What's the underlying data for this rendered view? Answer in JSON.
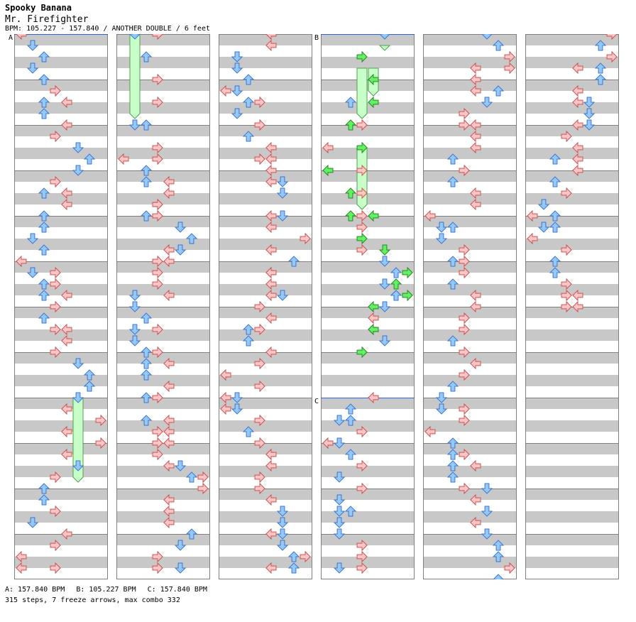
{
  "header": {
    "artist": "Spooky Banana",
    "title": "Mr. Firefighter",
    "info": "BPM: 105.227 - 157.840 / ANOTHER DOUBLE / 6 feet"
  },
  "sections": [
    {
      "label": "A",
      "bpm_text": "A: 157.840 BPM"
    },
    {
      "label": "B",
      "bpm_text": "B: 105.227 BPM"
    },
    {
      "label": "C",
      "bpm_text": "C: 157.840 BPM"
    }
  ],
  "stats": "315 steps, 7 freeze arrows, max combo 332",
  "colors": {
    "row_gray": "#c8c8c8",
    "measure_line": "#808080",
    "border": "#808080",
    "red_fill": "#ffc8c8",
    "red_stroke": "#d05050",
    "blue_fill": "#96c8ff",
    "blue_stroke": "#3c78c8",
    "green_fill": "#64f064",
    "green_stroke": "#208a20",
    "freeze_fill": "#c8ffc8",
    "freeze_stroke": "#50a050",
    "section_line": "#3264c8"
  },
  "chart_data": {
    "type": "table",
    "lanes": 8,
    "measures_per_column": 12,
    "beat_unit": "16th",
    "columns": [
      {
        "notes": [
          [
            0,
            0
          ],
          [
            1,
            1
          ],
          [
            2,
            2
          ],
          [
            3,
            1
          ],
          [
            4,
            2
          ],
          [
            5,
            3
          ],
          [
            6,
            2
          ],
          [
            6,
            4
          ],
          [
            7,
            2
          ],
          [
            8,
            4
          ],
          [
            9,
            3
          ],
          [
            10,
            5
          ],
          [
            11,
            6
          ],
          [
            12,
            5
          ],
          [
            13,
            3
          ],
          [
            14,
            4
          ],
          [
            14,
            2
          ],
          [
            15,
            4
          ],
          [
            16,
            2
          ],
          [
            17,
            2
          ],
          [
            18,
            1
          ],
          [
            19,
            2
          ],
          [
            20,
            0
          ],
          [
            21,
            1
          ],
          [
            21,
            3
          ],
          [
            22,
            2
          ],
          [
            22,
            3
          ],
          [
            23,
            2
          ],
          [
            23,
            4
          ],
          [
            24,
            3
          ],
          [
            25,
            2
          ],
          [
            26,
            4
          ],
          [
            26,
            3
          ],
          [
            27,
            4
          ],
          [
            28,
            3
          ],
          [
            29,
            5
          ],
          [
            30,
            6
          ],
          [
            31,
            6
          ],
          [
            31,
            6
          ],
          [
            32,
            5
          ],
          [
            33,
            4
          ],
          [
            34,
            7
          ],
          [
            35,
            4
          ],
          [
            36,
            7
          ],
          [
            37,
            4
          ],
          [
            38,
            5
          ],
          [
            39,
            3
          ],
          [
            40,
            2
          ],
          [
            41,
            2
          ],
          [
            42,
            3
          ],
          [
            43,
            1
          ],
          [
            44,
            4
          ],
          [
            45,
            3
          ],
          [
            46,
            0
          ],
          [
            47,
            0
          ],
          [
            47,
            3
          ]
        ],
        "freezes": [
          [
            32,
            5,
            39
          ]
        ],
        "greens": []
      },
      {
        "notes": [
          [
            0,
            1
          ],
          [
            0,
            3
          ],
          [
            2,
            2
          ],
          [
            4,
            3
          ],
          [
            6,
            3
          ],
          [
            8,
            1
          ],
          [
            8,
            2
          ],
          [
            10,
            3
          ],
          [
            11,
            0
          ],
          [
            11,
            3
          ],
          [
            12,
            2
          ],
          [
            13,
            2
          ],
          [
            13,
            4
          ],
          [
            14,
            4
          ],
          [
            15,
            3
          ],
          [
            15,
            3
          ],
          [
            16,
            3
          ],
          [
            16,
            2
          ],
          [
            17,
            5
          ],
          [
            18,
            6
          ],
          [
            19,
            4
          ],
          [
            19,
            5
          ],
          [
            20,
            3
          ],
          [
            20,
            4
          ],
          [
            21,
            3
          ],
          [
            22,
            3
          ],
          [
            23,
            1
          ],
          [
            23,
            4
          ],
          [
            24,
            1
          ],
          [
            25,
            2
          ],
          [
            26,
            1
          ],
          [
            26,
            3
          ],
          [
            27,
            1
          ],
          [
            28,
            3
          ],
          [
            28,
            2
          ],
          [
            29,
            2
          ],
          [
            29,
            4
          ],
          [
            30,
            2
          ],
          [
            31,
            4
          ],
          [
            32,
            3
          ],
          [
            32,
            2
          ],
          [
            34,
            2
          ],
          [
            34,
            4
          ],
          [
            35,
            3
          ],
          [
            35,
            4
          ],
          [
            36,
            3
          ],
          [
            36,
            4
          ],
          [
            37,
            3
          ],
          [
            38,
            4
          ],
          [
            38,
            5
          ],
          [
            39,
            6
          ],
          [
            39,
            7
          ],
          [
            40,
            7
          ],
          [
            41,
            4
          ],
          [
            42,
            4
          ],
          [
            43,
            4
          ],
          [
            44,
            6
          ],
          [
            45,
            5
          ],
          [
            46,
            3
          ],
          [
            47,
            3
          ],
          [
            47,
            5
          ]
        ],
        "freezes": [
          [
            0,
            1,
            7
          ]
        ],
        "greens": []
      },
      {
        "notes": [
          [
            0,
            4
          ],
          [
            0,
            4
          ],
          [
            1,
            4
          ],
          [
            2,
            1
          ],
          [
            2,
            1
          ],
          [
            3,
            1
          ],
          [
            4,
            2
          ],
          [
            5,
            0
          ],
          [
            5,
            1
          ],
          [
            6,
            2
          ],
          [
            6,
            3
          ],
          [
            7,
            1
          ],
          [
            8,
            3
          ],
          [
            9,
            2
          ],
          [
            10,
            4
          ],
          [
            11,
            3
          ],
          [
            11,
            4
          ],
          [
            12,
            4
          ],
          [
            13,
            4
          ],
          [
            13,
            5
          ],
          [
            14,
            5
          ],
          [
            16,
            4
          ],
          [
            16,
            5
          ],
          [
            17,
            4
          ],
          [
            18,
            7
          ],
          [
            19,
            4
          ],
          [
            20,
            6
          ],
          [
            21,
            4
          ],
          [
            21,
            4
          ],
          [
            22,
            4
          ],
          [
            23,
            4
          ],
          [
            23,
            5
          ],
          [
            24,
            3
          ],
          [
            25,
            4
          ],
          [
            26,
            2
          ],
          [
            26,
            3
          ],
          [
            27,
            2
          ],
          [
            28,
            4
          ],
          [
            29,
            3
          ],
          [
            30,
            0
          ],
          [
            30,
            0
          ],
          [
            31,
            3
          ],
          [
            32,
            0
          ],
          [
            32,
            1
          ],
          [
            33,
            0
          ],
          [
            33,
            1
          ],
          [
            34,
            3
          ],
          [
            35,
            2
          ],
          [
            36,
            3
          ],
          [
            37,
            4
          ],
          [
            37,
            4
          ],
          [
            38,
            4
          ],
          [
            39,
            3
          ],
          [
            40,
            3
          ],
          [
            41,
            4
          ],
          [
            42,
            5
          ],
          [
            43,
            5
          ],
          [
            44,
            4
          ],
          [
            44,
            5
          ],
          [
            45,
            5
          ],
          [
            46,
            6
          ],
          [
            46,
            7
          ],
          [
            47,
            4
          ],
          [
            47,
            6
          ]
        ],
        "freezes": [],
        "greens": []
      },
      {
        "notes": [
          [
            0,
            5
          ],
          [
            6,
            2
          ],
          [
            8,
            3
          ],
          [
            10,
            0
          ],
          [
            12,
            3
          ],
          [
            14,
            3
          ],
          [
            16,
            3
          ],
          [
            17,
            3
          ],
          [
            19,
            3
          ],
          [
            20,
            5
          ],
          [
            21,
            6
          ],
          [
            22,
            5
          ],
          [
            23,
            6
          ],
          [
            23,
            6
          ],
          [
            24,
            5
          ],
          [
            25,
            4
          ],
          [
            26,
            4
          ],
          [
            27,
            5
          ],
          [
            32,
            4
          ],
          [
            33,
            2
          ],
          [
            34,
            2
          ],
          [
            34,
            1
          ],
          [
            35,
            3
          ],
          [
            36,
            0
          ],
          [
            36,
            0
          ],
          [
            36,
            1
          ],
          [
            37,
            2
          ],
          [
            38,
            3
          ],
          [
            39,
            1
          ],
          [
            40,
            3
          ],
          [
            41,
            1
          ],
          [
            42,
            2
          ],
          [
            42,
            1
          ],
          [
            43,
            1
          ],
          [
            44,
            1
          ],
          [
            45,
            3
          ],
          [
            46,
            3
          ],
          [
            47,
            1
          ],
          [
            47,
            3
          ]
        ],
        "freezes": [
          [
            3,
            3,
            7
          ],
          [
            3,
            4,
            5
          ],
          [
            10,
            3,
            15
          ],
          [
            1,
            5,
            1
          ]
        ],
        "greens": [
          [
            2,
            3
          ],
          [
            4,
            4
          ],
          [
            6,
            4
          ],
          [
            8,
            2
          ],
          [
            10,
            3
          ],
          [
            12,
            0
          ],
          [
            14,
            2
          ],
          [
            16,
            2
          ],
          [
            16,
            4
          ],
          [
            18,
            3
          ],
          [
            19,
            5
          ],
          [
            21,
            7
          ],
          [
            22,
            6
          ],
          [
            23,
            7
          ],
          [
            24,
            4
          ],
          [
            26,
            4
          ],
          [
            28,
            3
          ]
        ]
      },
      {
        "notes": [
          [
            0,
            5
          ],
          [
            1,
            6
          ],
          [
            2,
            7
          ],
          [
            3,
            4
          ],
          [
            3,
            7
          ],
          [
            4,
            4
          ],
          [
            5,
            4
          ],
          [
            5,
            6
          ],
          [
            6,
            5
          ],
          [
            7,
            3
          ],
          [
            8,
            3
          ],
          [
            8,
            4
          ],
          [
            9,
            4
          ],
          [
            10,
            4
          ],
          [
            11,
            2
          ],
          [
            12,
            3
          ],
          [
            13,
            2
          ],
          [
            14,
            4
          ],
          [
            15,
            4
          ],
          [
            16,
            0
          ],
          [
            17,
            1
          ],
          [
            17,
            2
          ],
          [
            18,
            1
          ],
          [
            19,
            3
          ],
          [
            20,
            2
          ],
          [
            20,
            3
          ],
          [
            21,
            3
          ],
          [
            22,
            2
          ],
          [
            23,
            4
          ],
          [
            24,
            4
          ],
          [
            25,
            3
          ],
          [
            26,
            3
          ],
          [
            27,
            2
          ],
          [
            28,
            3
          ],
          [
            29,
            4
          ],
          [
            30,
            3
          ],
          [
            31,
            2
          ],
          [
            32,
            1
          ],
          [
            33,
            1
          ],
          [
            33,
            3
          ],
          [
            34,
            3
          ],
          [
            35,
            0
          ],
          [
            36,
            2
          ],
          [
            37,
            2
          ],
          [
            37,
            3
          ],
          [
            38,
            2
          ],
          [
            38,
            4
          ],
          [
            39,
            2
          ],
          [
            40,
            3
          ],
          [
            40,
            5
          ],
          [
            41,
            4
          ],
          [
            42,
            5
          ],
          [
            43,
            4
          ],
          [
            44,
            5
          ],
          [
            45,
            6
          ],
          [
            46,
            6
          ],
          [
            47,
            7
          ],
          [
            48,
            6
          ]
        ],
        "freezes": [],
        "greens": []
      },
      {
        "notes": [
          [
            0,
            7
          ],
          [
            1,
            6
          ],
          [
            2,
            7
          ],
          [
            3,
            4
          ],
          [
            3,
            6
          ],
          [
            4,
            6
          ],
          [
            5,
            4
          ],
          [
            6,
            4
          ],
          [
            6,
            5
          ],
          [
            7,
            5
          ],
          [
            8,
            4
          ],
          [
            8,
            5
          ],
          [
            9,
            3
          ],
          [
            10,
            4
          ],
          [
            11,
            2
          ],
          [
            11,
            4
          ],
          [
            12,
            4
          ],
          [
            13,
            2
          ],
          [
            14,
            3
          ],
          [
            15,
            1
          ],
          [
            16,
            0
          ],
          [
            16,
            2
          ],
          [
            17,
            1
          ],
          [
            17,
            2
          ],
          [
            18,
            0
          ],
          [
            19,
            3
          ],
          [
            20,
            2
          ],
          [
            21,
            2
          ],
          [
            22,
            3
          ],
          [
            23,
            3
          ],
          [
            23,
            4
          ],
          [
            24,
            3
          ],
          [
            24,
            4
          ]
        ],
        "freezes": [],
        "greens": []
      }
    ]
  }
}
